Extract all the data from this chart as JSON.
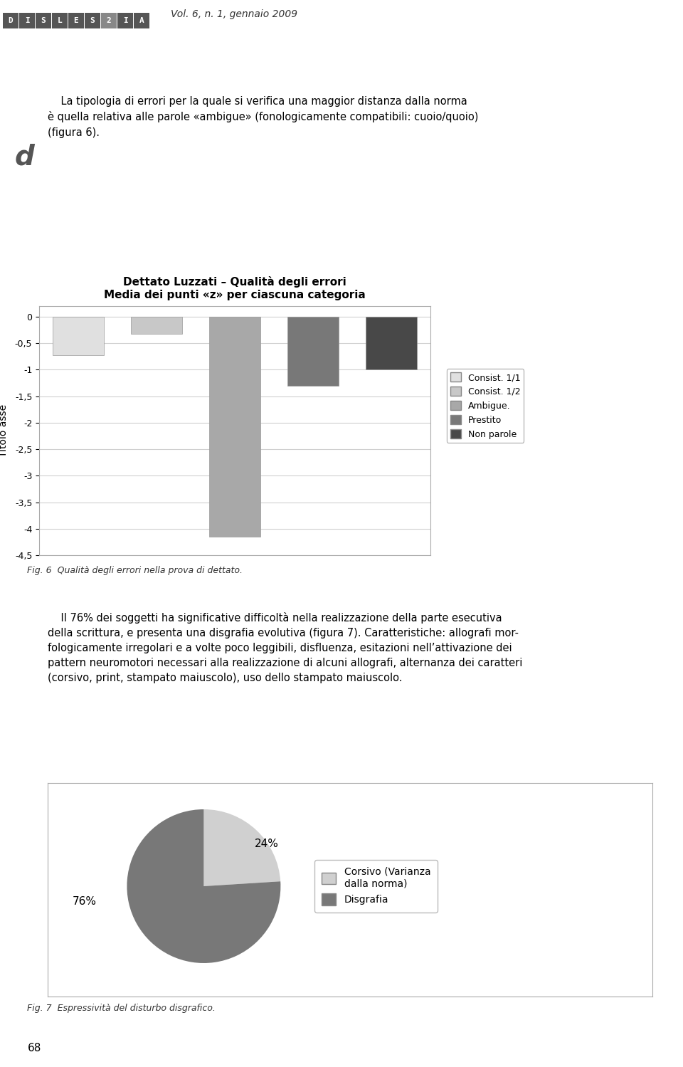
{
  "page_bg": "#ffffff",
  "header_text": "Vol. 6, n. 1, gennaio 2009",
  "body_text1": "    La tipologia di errori per la quale si verifica una maggior distanza dalla norma\nè quella relativa alle parole «ambigue» (fonologicamente compatibili: cuoio/quoio)\n(figura 6).",
  "bar_title_line1": "Dettato Luzzati – Qualità degli errori",
  "bar_title_line2": "Media dei punti «z» per ciascuna categoria",
  "bar_values": [
    -0.72,
    -0.32,
    -4.15,
    -1.3,
    -1.0
  ],
  "bar_colors": [
    "#e0e0e0",
    "#c8c8c8",
    "#a8a8a8",
    "#787878",
    "#484848"
  ],
  "bar_legend": [
    "Consist. 1/1",
    "Consist. 1/2",
    "Ambigue.",
    "Prestito",
    "Non parole"
  ],
  "bar_ylabel": "Titolo asse",
  "bar_ylim_min": -4.5,
  "bar_ylim_max": 0.2,
  "bar_yticks": [
    0,
    -0.5,
    -1.0,
    -1.5,
    -2.0,
    -2.5,
    -3.0,
    -3.5,
    -4.0,
    -4.5
  ],
  "bar_ytick_labels": [
    "0",
    "-0,5",
    "-1",
    "-1,5",
    "-2",
    "-2,5",
    "-3",
    "-3,5",
    "-4",
    "-4,5"
  ],
  "fig6_caption": "Fig. 6  Qualità degli errori nella prova di dettato.",
  "body_text2": "    Il 76% dei soggetti ha significative difficoltà nella realizzazione della parte esecutiva\ndella scrittura, e presenta una disgrafia evolutiva (figura 7). Caratteristiche: allografi mor-\nfologicamente irregolari e a volte poco leggibili, disfluenza, esitazioni nell’attivazione dei\npattern neuromotori necessari alla realizzazione di alcuni allografi, alternanza dei caratteri\n(corsivo, print, stampato maiuscolo), uso dello stampato maiuscolo.",
  "pie_values": [
    24,
    76
  ],
  "pie_colors": [
    "#d0d0d0",
    "#787878"
  ],
  "pie_pct_labels": [
    "24%",
    "76%"
  ],
  "pie_legend_labels": [
    "Corsivo (Varianza\ndalla norma)",
    "Disgrafia"
  ],
  "pie_legend_colors": [
    "#d0d0d0",
    "#787878"
  ],
  "fig7_caption": "Fig. 7  Espressività del disturbo disgrafico.",
  "page_number": "68",
  "grid_color": "#d0d0d0",
  "logo_letters": [
    "D",
    "I",
    "S",
    "L",
    "E",
    "S",
    "2",
    "I",
    "A"
  ],
  "logo_colors": [
    "#555555",
    "#555555",
    "#555555",
    "#555555",
    "#555555",
    "#555555",
    "#888888",
    "#555555",
    "#555555"
  ]
}
